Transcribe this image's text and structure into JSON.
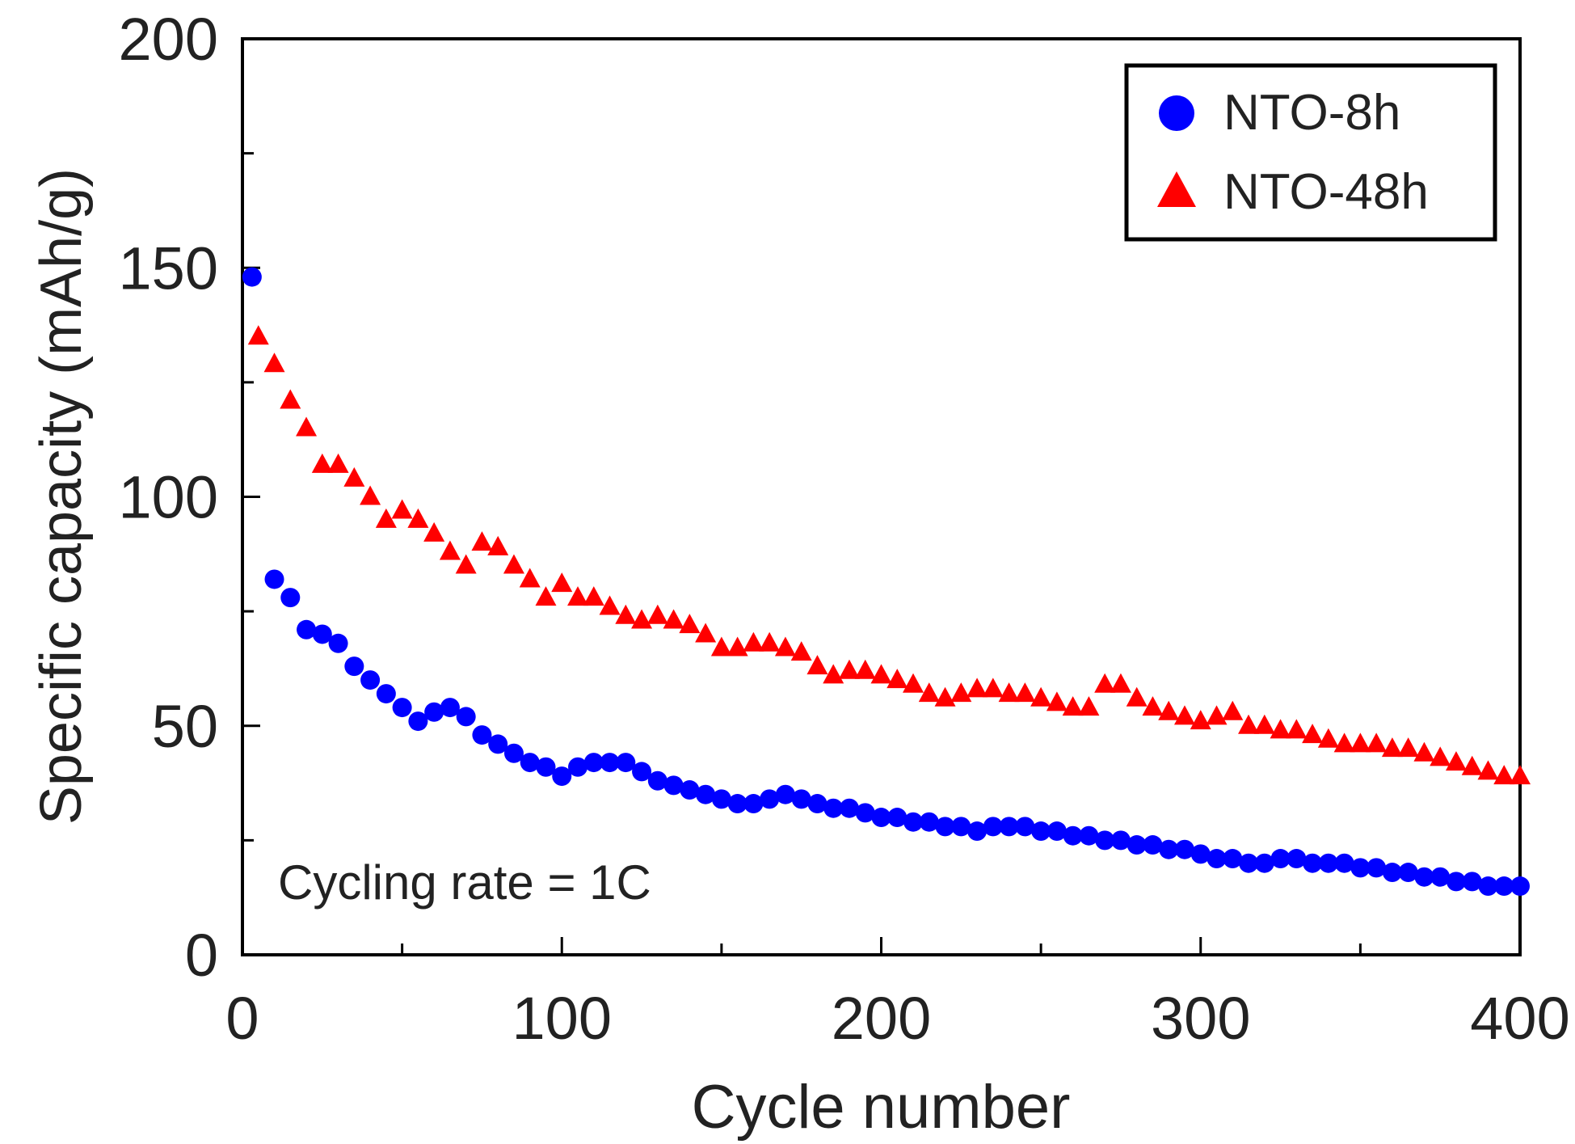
{
  "chart_data": {
    "type": "scatter",
    "title": "",
    "xlabel": "Cycle number",
    "ylabel": "Specific capacity (mAh/g)",
    "xlim": [
      0,
      400
    ],
    "ylim": [
      0,
      200
    ],
    "xticks": [
      "0",
      "100",
      "200",
      "300",
      "400"
    ],
    "yticks": [
      "0",
      "50",
      "100",
      "150",
      "200"
    ],
    "grid": false,
    "legend_position": "top-right",
    "annotation": "Cycling rate = 1C",
    "series": [
      {
        "name": "NTO-8h",
        "marker": "circle",
        "color": "#0000ff",
        "x": [
          3,
          10,
          15,
          20,
          25,
          30,
          35,
          40,
          45,
          50,
          55,
          60,
          65,
          70,
          75,
          80,
          85,
          90,
          95,
          100,
          105,
          110,
          115,
          120,
          125,
          130,
          135,
          140,
          145,
          150,
          155,
          160,
          165,
          170,
          175,
          180,
          185,
          190,
          195,
          200,
          205,
          210,
          215,
          220,
          225,
          230,
          235,
          240,
          245,
          250,
          255,
          260,
          265,
          270,
          275,
          280,
          285,
          290,
          295,
          300,
          305,
          310,
          315,
          320,
          325,
          330,
          335,
          340,
          345,
          350,
          355,
          360,
          365,
          370,
          375,
          380,
          385,
          390,
          395,
          400
        ],
        "y": [
          148,
          82,
          78,
          71,
          70,
          68,
          63,
          60,
          57,
          54,
          51,
          53,
          54,
          52,
          48,
          46,
          44,
          42,
          41,
          39,
          41,
          42,
          42,
          42,
          40,
          38,
          37,
          36,
          35,
          34,
          33,
          33,
          34,
          35,
          34,
          33,
          32,
          32,
          31,
          30,
          30,
          29,
          29,
          28,
          28,
          27,
          28,
          28,
          28,
          27,
          27,
          26,
          26,
          25,
          25,
          24,
          24,
          23,
          23,
          22,
          21,
          21,
          20,
          20,
          21,
          21,
          20,
          20,
          20,
          19,
          19,
          18,
          18,
          17,
          17,
          16,
          16,
          15,
          15,
          15
        ]
      },
      {
        "name": "NTO-48h",
        "marker": "triangle",
        "color": "#ff0000",
        "x": [
          5,
          10,
          15,
          20,
          25,
          30,
          35,
          40,
          45,
          50,
          55,
          60,
          65,
          70,
          75,
          80,
          85,
          90,
          95,
          100,
          105,
          110,
          115,
          120,
          125,
          130,
          135,
          140,
          145,
          150,
          155,
          160,
          165,
          170,
          175,
          180,
          185,
          190,
          195,
          200,
          205,
          210,
          215,
          220,
          225,
          230,
          235,
          240,
          245,
          250,
          255,
          260,
          265,
          270,
          275,
          280,
          285,
          290,
          295,
          300,
          305,
          310,
          315,
          320,
          325,
          330,
          335,
          340,
          345,
          350,
          355,
          360,
          365,
          370,
          375,
          380,
          385,
          390,
          395,
          400
        ],
        "y": [
          135,
          129,
          121,
          115,
          107,
          107,
          104,
          100,
          95,
          97,
          95,
          92,
          88,
          85,
          90,
          89,
          85,
          82,
          78,
          81,
          78,
          78,
          76,
          74,
          73,
          74,
          73,
          72,
          70,
          67,
          67,
          68,
          68,
          67,
          66,
          63,
          61,
          62,
          62,
          61,
          60,
          59,
          57,
          56,
          57,
          58,
          58,
          57,
          57,
          56,
          55,
          54,
          54,
          59,
          59,
          56,
          54,
          53,
          52,
          51,
          52,
          53,
          50,
          50,
          49,
          49,
          48,
          47,
          46,
          46,
          46,
          45,
          45,
          44,
          43,
          42,
          41,
          40,
          39,
          39
        ]
      }
    ]
  }
}
